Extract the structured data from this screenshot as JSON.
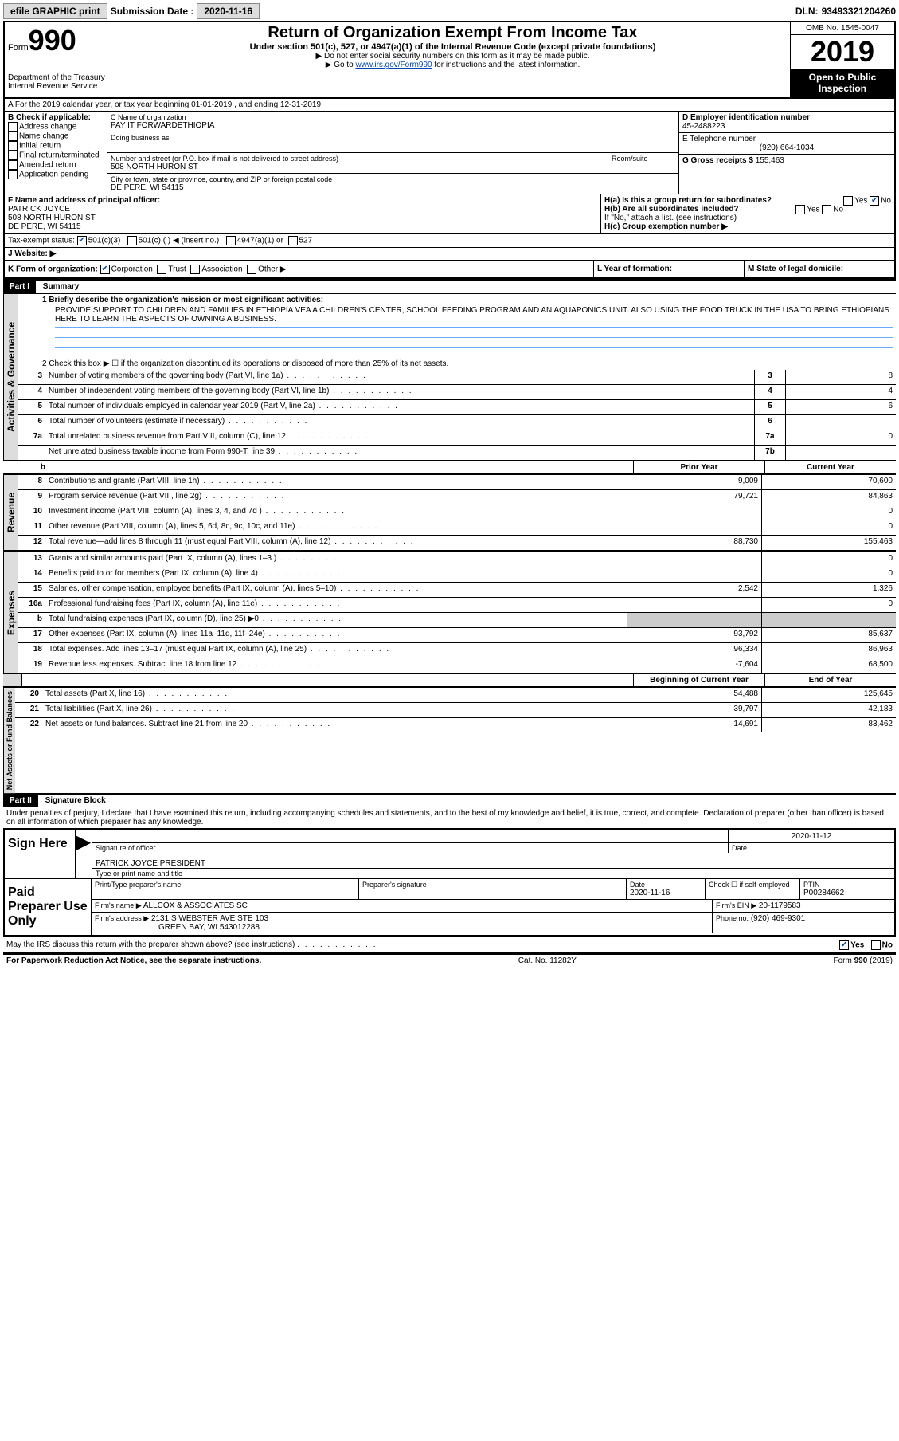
{
  "topbar": {
    "efile": "efile GRAPHIC print",
    "subdate_lbl": "Submission Date :",
    "subdate": "2020-11-16",
    "dln_lbl": "DLN:",
    "dln": "93493321204260"
  },
  "header": {
    "form_lbl": "Form",
    "form_num": "990",
    "dept": "Department of the Treasury\nInternal Revenue Service",
    "title": "Return of Organization Exempt From Income Tax",
    "sub1": "Under section 501(c), 527, or 4947(a)(1) of the Internal Revenue Code (except private foundations)",
    "sub2": "▶ Do not enter social security numbers on this form as it may be made public.",
    "sub3_pre": "▶ Go to ",
    "sub3_link": "www.irs.gov/Form990",
    "sub3_post": " for instructions and the latest information.",
    "omb": "OMB No. 1545-0047",
    "year": "2019",
    "open": "Open to Public Inspection"
  },
  "lineA": "A For the 2019 calendar year, or tax year beginning 01-01-2019    , and ending 12-31-2019",
  "boxB": {
    "lbl": "B Check if applicable:",
    "items": [
      "Address change",
      "Name change",
      "Initial return",
      "Final return/terminated",
      "Amended return",
      "Application pending"
    ]
  },
  "boxC": {
    "name_lbl": "C Name of organization",
    "name": "PAY IT FORWARDETHIOPIA",
    "dba_lbl": "Doing business as",
    "addr_lbl": "Number and street (or P.O. box if mail is not delivered to street address)",
    "room_lbl": "Room/suite",
    "addr": "508 NORTH HURON ST",
    "city_lbl": "City or town, state or province, country, and ZIP or foreign postal code",
    "city": "DE PERE, WI  54115"
  },
  "boxD": {
    "lbl": "D Employer identification number",
    "val": "45-2488223"
  },
  "boxE": {
    "lbl": "E Telephone number",
    "val": "(920) 664-1034"
  },
  "boxG": {
    "lbl": "G Gross receipts $",
    "val": "155,463"
  },
  "boxF": {
    "lbl": "F  Name and address of principal officer:",
    "name": "PATRICK JOYCE",
    "addr1": "508 NORTH HURON ST",
    "addr2": "DE PERE, WI  54115"
  },
  "boxH": {
    "a_lbl": "H(a)  Is this a group return for subordinates?",
    "b_lbl": "H(b)  Are all subordinates included?",
    "b_note": "If \"No,\" attach a list. (see instructions)",
    "c_lbl": "H(c)  Group exemption number ▶",
    "yes": "Yes",
    "no": "No"
  },
  "taxstatus": {
    "lbl": "Tax-exempt status:",
    "o1": "501(c)(3)",
    "o2": "501(c) (  ) ◀ (insert no.)",
    "o3": "4947(a)(1) or",
    "o4": "527"
  },
  "boxJ": "J    Website: ▶",
  "boxK": {
    "lbl": "K Form of organization:",
    "o1": "Corporation",
    "o2": "Trust",
    "o3": "Association",
    "o4": "Other ▶"
  },
  "boxL": "L Year of formation:",
  "boxM": "M State of legal domicile:",
  "part1": {
    "hdr": "Part I",
    "title": "Summary"
  },
  "summary": {
    "l1": "1  Briefly describe the organization's mission or most significant activities:",
    "mission": "PROVIDE SUPPORT TO CHILDREN AND FAMILIES IN ETHIOPIA VEA A CHILDREN'S CENTER, SCHOOL FEEDING PROGRAM AND AN AQUAPONICS UNIT. ALSO USING THE FOOD TRUCK IN THE USA TO BRING ETHIOPIANS HERE TO LEARN THE ASPECTS OF OWNING A BUSINESS.",
    "l2": "2   Check this box ▶ ☐  if the organization discontinued its operations or disposed of more than 25% of its net assets.",
    "rows_ag": [
      {
        "n": "3",
        "d": "Number of voting members of the governing body (Part VI, line 1a)",
        "box": "3",
        "v": "8"
      },
      {
        "n": "4",
        "d": "Number of independent voting members of the governing body (Part VI, line 1b)",
        "box": "4",
        "v": "4"
      },
      {
        "n": "5",
        "d": "Total number of individuals employed in calendar year 2019 (Part V, line 2a)",
        "box": "5",
        "v": "6"
      },
      {
        "n": "6",
        "d": "Total number of volunteers (estimate if necessary)",
        "box": "6",
        "v": ""
      },
      {
        "n": "7a",
        "d": "Total unrelated business revenue from Part VIII, column (C), line 12",
        "box": "7a",
        "v": "0"
      },
      {
        "n": "",
        "d": "Net unrelated business taxable income from Form 990-T, line 39",
        "box": "7b",
        "v": ""
      }
    ],
    "col_prior": "Prior Year",
    "col_curr": "Current Year",
    "rev": [
      {
        "n": "8",
        "d": "Contributions and grants (Part VIII, line 1h)",
        "p": "9,009",
        "c": "70,600"
      },
      {
        "n": "9",
        "d": "Program service revenue (Part VIII, line 2g)",
        "p": "79,721",
        "c": "84,863"
      },
      {
        "n": "10",
        "d": "Investment income (Part VIII, column (A), lines 3, 4, and 7d )",
        "p": "",
        "c": "0"
      },
      {
        "n": "11",
        "d": "Other revenue (Part VIII, column (A), lines 5, 6d, 8c, 9c, 10c, and 11e)",
        "p": "",
        "c": "0"
      },
      {
        "n": "12",
        "d": "Total revenue—add lines 8 through 11 (must equal Part VIII, column (A), line 12)",
        "p": "88,730",
        "c": "155,463"
      }
    ],
    "exp": [
      {
        "n": "13",
        "d": "Grants and similar amounts paid (Part IX, column (A), lines 1–3 )",
        "p": "",
        "c": "0"
      },
      {
        "n": "14",
        "d": "Benefits paid to or for members (Part IX, column (A), line 4)",
        "p": "",
        "c": "0"
      },
      {
        "n": "15",
        "d": "Salaries, other compensation, employee benefits (Part IX, column (A), lines 5–10)",
        "p": "2,542",
        "c": "1,326"
      },
      {
        "n": "16a",
        "d": "Professional fundraising fees (Part IX, column (A), line 11e)",
        "p": "",
        "c": "0"
      },
      {
        "n": "b",
        "d": "Total fundraising expenses (Part IX, column (D), line 25) ▶0",
        "p": "shade",
        "c": "shade"
      },
      {
        "n": "17",
        "d": "Other expenses (Part IX, column (A), lines 11a–11d, 11f–24e)",
        "p": "93,792",
        "c": "85,637"
      },
      {
        "n": "18",
        "d": "Total expenses. Add lines 13–17 (must equal Part IX, column (A), line 25)",
        "p": "96,334",
        "c": "86,963"
      },
      {
        "n": "19",
        "d": "Revenue less expenses. Subtract line 18 from line 12",
        "p": "-7,604",
        "c": "68,500"
      }
    ],
    "net_hdr_l": "Beginning of Current Year",
    "net_hdr_r": "End of Year",
    "net": [
      {
        "n": "20",
        "d": "Total assets (Part X, line 16)",
        "p": "54,488",
        "c": "125,645"
      },
      {
        "n": "21",
        "d": "Total liabilities (Part X, line 26)",
        "p": "39,797",
        "c": "42,183"
      },
      {
        "n": "22",
        "d": "Net assets or fund balances. Subtract line 21 from line 20",
        "p": "14,691",
        "c": "83,462"
      }
    ],
    "side_ag": "Activities & Governance",
    "side_rev": "Revenue",
    "side_exp": "Expenses",
    "side_net": "Net Assets or Fund Balances"
  },
  "part2": {
    "hdr": "Part II",
    "title": "Signature Block",
    "decl": "Under penalties of perjury, I declare that I have examined this return, including accompanying schedules and statements, and to the best of my knowledge and belief, it is true, correct, and complete. Declaration of preparer (other than officer) is based on all information of which preparer has any knowledge."
  },
  "sign": {
    "here": "Sign Here",
    "sig_lbl": "Signature of officer",
    "date_lbl": "Date",
    "date": "2020-11-12",
    "name": "PATRICK JOYCE  PRESIDENT",
    "name_lbl": "Type or print name and title"
  },
  "paid": {
    "lbl": "Paid Preparer Use Only",
    "c1": "Print/Type preparer's name",
    "c2": "Preparer's signature",
    "c3_lbl": "Date",
    "c3": "2020-11-16",
    "c4": "Check ☐ if self-employed",
    "c5_lbl": "PTIN",
    "c5": "P00284662",
    "firm_lbl": "Firm's name    ▶",
    "firm": "ALLCOX & ASSOCIATES SC",
    "ein_lbl": "Firm's EIN ▶",
    "ein": "20-1179583",
    "addr_lbl": "Firm's address ▶",
    "addr1": "2131 S WEBSTER AVE STE 103",
    "addr2": "GREEN BAY, WI  543012288",
    "ph_lbl": "Phone no.",
    "ph": "(920) 469-9301"
  },
  "discuss": {
    "q": "May the IRS discuss this return with the preparer shown above? (see instructions)",
    "yes": "Yes",
    "no": "No"
  },
  "footer": {
    "l": "For Paperwork Reduction Act Notice, see the separate instructions.",
    "m": "Cat. No. 11282Y",
    "r": "Form 990 (2019)"
  }
}
